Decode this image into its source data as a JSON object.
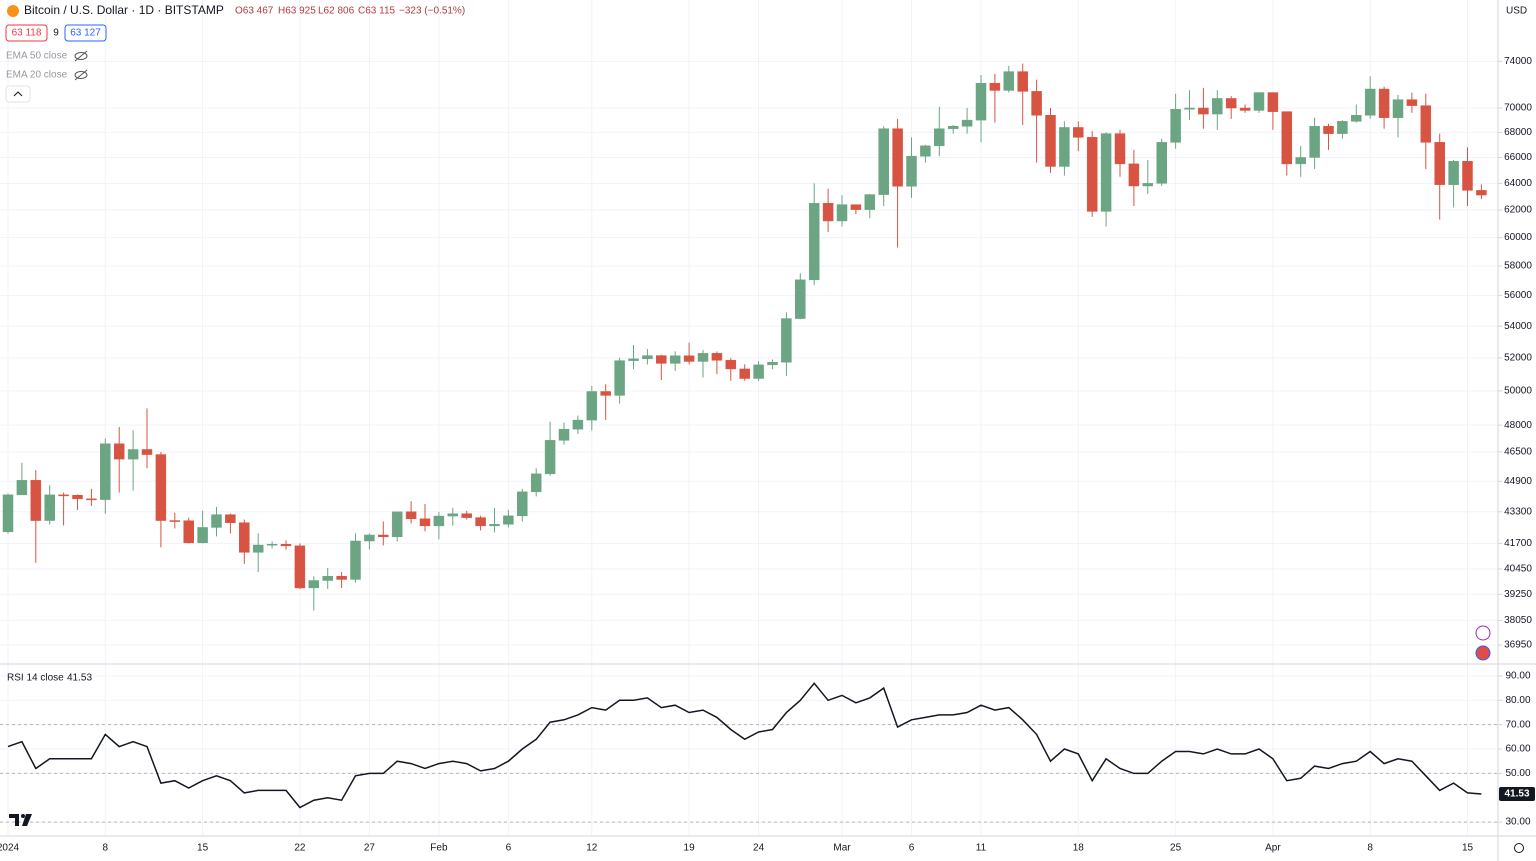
{
  "header": {
    "symbol": "Bitcoin / U.S. Dollar · 1D · BITSTAMP",
    "ohlc": [
      "O63 467",
      "H63 925",
      "L62 806",
      "C63 115",
      "−323 (−0.51%)"
    ],
    "bid": "63 118",
    "spread": "9",
    "ask": "63 127",
    "indicators": [
      "EMA 50 close",
      "EMA 20 close"
    ],
    "currency": "USD"
  },
  "chart_data": [
    {
      "type": "candlestick",
      "categories": [
        "2024",
        null,
        null,
        null,
        null,
        null,
        null,
        "8",
        null,
        null,
        null,
        null,
        null,
        null,
        "15",
        null,
        null,
        null,
        null,
        null,
        null,
        "22",
        null,
        null,
        null,
        null,
        "27",
        null,
        null,
        null,
        null,
        "Feb",
        null,
        null,
        null,
        null,
        "6",
        null,
        null,
        null,
        null,
        null,
        "12",
        null,
        null,
        null,
        null,
        null,
        null,
        "19",
        null,
        null,
        null,
        null,
        "24",
        null,
        null,
        null,
        null,
        null,
        "Mar",
        null,
        null,
        null,
        null,
        "6",
        null,
        null,
        null,
        null,
        "11",
        null,
        null,
        null,
        null,
        null,
        null,
        "18",
        null,
        null,
        null,
        null,
        null,
        null,
        "25",
        null,
        null,
        null,
        null,
        null,
        null,
        "Apr",
        null,
        null,
        null,
        null,
        null,
        null,
        "8",
        null,
        null,
        null,
        null,
        null,
        null,
        "15",
        null
      ],
      "open": [
        42280,
        44180,
        44950,
        42850,
        44180,
        44160,
        43970,
        43930,
        46950,
        46100,
        46630,
        46350,
        42850,
        42840,
        41730,
        42500,
        43150,
        42740,
        41260,
        41620,
        41660,
        41580,
        39550,
        39900,
        40100,
        39950,
        41820,
        42120,
        42030,
        43300,
        42940,
        42580,
        43080,
        43200,
        43000,
        42580,
        42660,
        43090,
        44340,
        45300,
        47140,
        47770,
        48290,
        49960,
        49730,
        51830,
        51940,
        52140,
        51660,
        52130,
        51780,
        52280,
        51850,
        51320,
        50740,
        51570,
        51730,
        54490,
        57060,
        62500,
        61200,
        62400,
        62030,
        63150,
        68300,
        63780,
        66100,
        66920,
        68300,
        68500,
        69000,
        72100,
        71480,
        73100,
        71400,
        69400,
        65300,
        68400,
        67600,
        61900,
        67900,
        65500,
        63800,
        64000,
        67200,
        69900,
        70000,
        69500,
        70800,
        70000,
        69800,
        71300,
        69700,
        65500,
        66000,
        68500,
        67900,
        68900,
        69400,
        71600,
        69200,
        70700,
        70200,
        67200,
        63900,
        65700,
        63467
      ],
      "high": [
        44250,
        45900,
        45500,
        44700,
        44300,
        44200,
        44500,
        47250,
        47900,
        47700,
        48970,
        46500,
        43250,
        43000,
        43350,
        43550,
        43200,
        42900,
        42200,
        41800,
        41850,
        41700,
        40100,
        40500,
        40300,
        42200,
        42200,
        42800,
        43300,
        43850,
        43700,
        43300,
        43500,
        43350,
        43100,
        43500,
        43400,
        44500,
        45600,
        48200,
        48150,
        48550,
        50300,
        50400,
        52000,
        52800,
        52550,
        52200,
        52400,
        52950,
        52500,
        52400,
        52000,
        51600,
        51800,
        51900,
        54900,
        57500,
        64000,
        63600,
        63100,
        62400,
        63200,
        68500,
        69100,
        67600,
        67000,
        70100,
        68600,
        70000,
        72800,
        72900,
        73600,
        73800,
        72400,
        70000,
        68900,
        68900,
        68100,
        68000,
        68200,
        66600,
        65800,
        67500,
        71200,
        71500,
        71700,
        71500,
        71000,
        70300,
        71300,
        71300,
        69700,
        66900,
        69200,
        68700,
        69000,
        70300,
        72700,
        71800,
        71100,
        71300,
        71200,
        67900,
        65800,
        66800,
        63925
      ],
      "low": [
        42180,
        44180,
        40750,
        42650,
        42600,
        43400,
        43600,
        43200,
        44300,
        44400,
        45600,
        41500,
        42450,
        41700,
        41700,
        42050,
        42200,
        40700,
        40300,
        41450,
        41400,
        39500,
        38500,
        39500,
        39550,
        39800,
        41400,
        41600,
        41800,
        42700,
        42300,
        41900,
        42600,
        42900,
        42350,
        42250,
        42500,
        42800,
        44100,
        45200,
        46900,
        47500,
        47700,
        48300,
        49250,
        51300,
        51600,
        50650,
        51200,
        51600,
        50800,
        51000,
        50600,
        50600,
        50600,
        51300,
        50900,
        54450,
        56700,
        60400,
        60800,
        61700,
        61400,
        62300,
        59300,
        62900,
        65600,
        66100,
        67900,
        67900,
        67200,
        68800,
        71300,
        68600,
        65600,
        64800,
        64600,
        66500,
        61500,
        60800,
        64500,
        62300,
        63200,
        63800,
        66700,
        69000,
        68300,
        68200,
        69100,
        69600,
        69600,
        68200,
        64600,
        64500,
        65100,
        66600,
        67500,
        68800,
        69100,
        68300,
        67600,
        69600,
        65100,
        61300,
        62200,
        62300,
        62806
      ],
      "close": [
        44180,
        44950,
        42850,
        44180,
        44160,
        43970,
        43930,
        46950,
        46100,
        46630,
        46350,
        42850,
        42840,
        41730,
        42500,
        43150,
        42740,
        41260,
        41620,
        41660,
        41580,
        39550,
        39900,
        40100,
        39950,
        41820,
        42120,
        42030,
        43300,
        42940,
        42580,
        43080,
        43200,
        43000,
        42580,
        42660,
        43090,
        44340,
        45300,
        47140,
        47770,
        48290,
        49960,
        49730,
        51830,
        51940,
        52140,
        51660,
        52130,
        51780,
        52280,
        51850,
        51320,
        50740,
        51570,
        51730,
        54490,
        57060,
        62500,
        61200,
        62400,
        62030,
        63150,
        68300,
        63780,
        66100,
        66920,
        68300,
        68500,
        69000,
        72100,
        71480,
        73100,
        71400,
        69400,
        65300,
        68400,
        67600,
        61900,
        67900,
        65500,
        63800,
        64000,
        67200,
        69900,
        70000,
        69500,
        70800,
        70000,
        69800,
        71300,
        69700,
        65500,
        66000,
        68500,
        67900,
        68900,
        69400,
        71600,
        69200,
        70700,
        70200,
        67200,
        63900,
        65700,
        63467,
        63115
      ],
      "up_color": "#6ba583",
      "down_color": "#d75442",
      "log_scale": true,
      "ylim": [
        36170,
        79600
      ],
      "yticks": [
        74000,
        70000,
        68000,
        66000,
        64000,
        62000,
        60000,
        58000,
        56000,
        54000,
        52000,
        50000,
        48000,
        46500,
        44900,
        43300,
        41700,
        40450,
        39250,
        38050,
        36950
      ],
      "grid": true
    },
    {
      "type": "line",
      "name": "RSI 14 close",
      "color": "#131722",
      "values": [
        61,
        63,
        52,
        56,
        56,
        56,
        56,
        66,
        61,
        63,
        61,
        46,
        47,
        44,
        47,
        49,
        47,
        42,
        43,
        43,
        43,
        36,
        39,
        40,
        39,
        49,
        50,
        50,
        55,
        54,
        52,
        54,
        55,
        54,
        51,
        52,
        55,
        60,
        64,
        71,
        72,
        74,
        77,
        76,
        80,
        80,
        81,
        77,
        78,
        75,
        76,
        73,
        68,
        64,
        67,
        68,
        75,
        80,
        87,
        80,
        82,
        79,
        81,
        85,
        69,
        72,
        73,
        74,
        74,
        75,
        78,
        76,
        77,
        72,
        66,
        55,
        60,
        58,
        47,
        56,
        52,
        50,
        50,
        55,
        59,
        59,
        58,
        60,
        58,
        58,
        60,
        56,
        47,
        48,
        53,
        52,
        54,
        55,
        59,
        54,
        56,
        55,
        49,
        43,
        46,
        42,
        41.53
      ],
      "ylim": [
        24.7,
        94.5
      ],
      "yticks": [
        {
          "value": 90,
          "label": "90.00"
        },
        {
          "value": 80,
          "label": "80.00"
        },
        {
          "value": 70,
          "label": "70.00"
        },
        {
          "value": 60,
          "label": "60.00"
        },
        {
          "value": 50,
          "label": "50.00"
        },
        {
          "value": 30,
          "label": "30.00"
        }
      ],
      "levels": [
        70,
        50,
        30
      ],
      "grid": true
    }
  ]
}
